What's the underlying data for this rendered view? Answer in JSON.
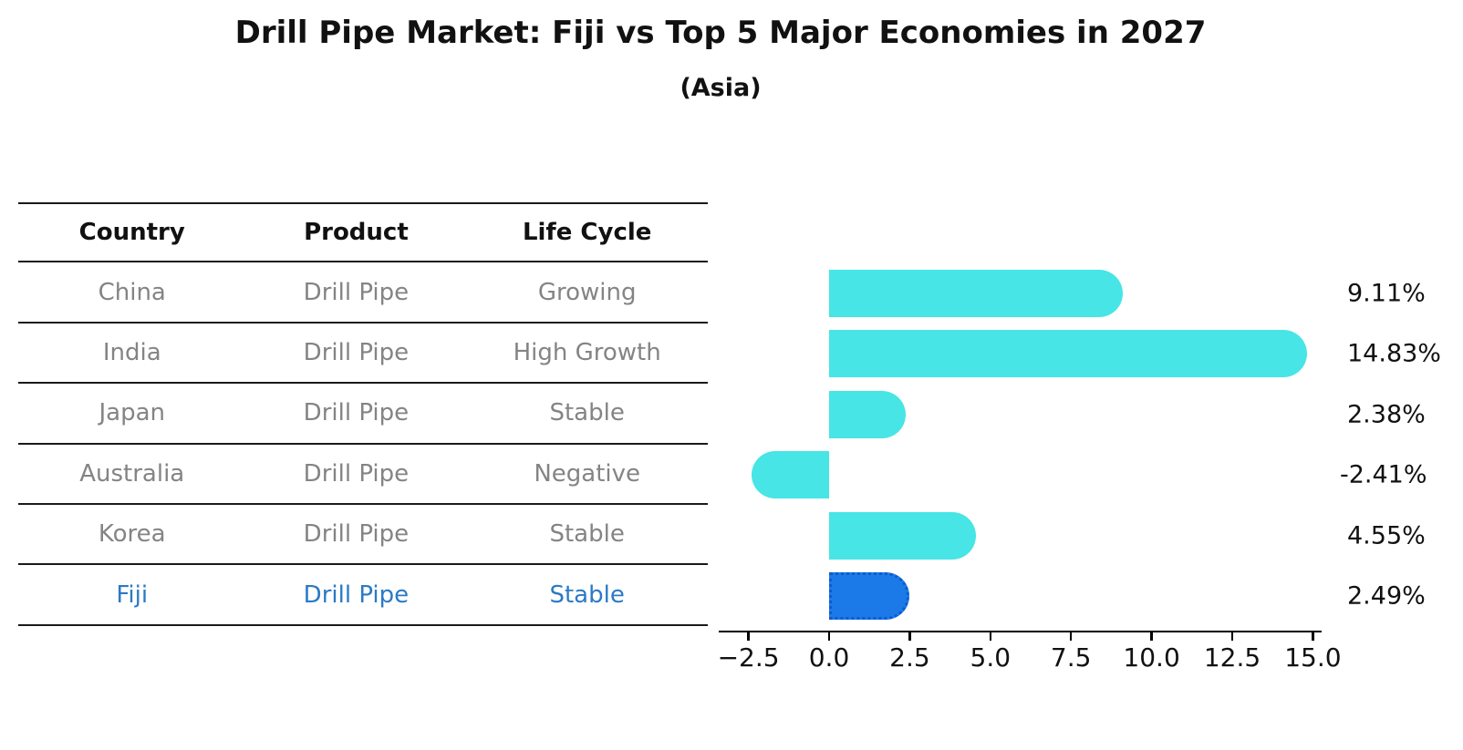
{
  "title": "Drill Pipe Market: Fiji vs Top 5 Major Economies in 2027",
  "subtitle": "(Asia)",
  "colors": {
    "bar_default": "#47e5e5",
    "bar_highlight": "#1c79e8",
    "bar_highlight_border": "#0d5bd0",
    "table_header_text": "#111111",
    "table_row_text": "#848484",
    "table_highlight_text": "#2b7ac6",
    "table_line": "#1a1a1a",
    "axis": "#000000",
    "value_label_text": "#111111"
  },
  "table": {
    "headers": [
      "Country",
      "Product",
      "Life Cycle"
    ],
    "rows": [
      {
        "country": "China",
        "product": "Drill Pipe",
        "life_cycle": "Growing",
        "highlight": false
      },
      {
        "country": "India",
        "product": "Drill Pipe",
        "life_cycle": "High Growth",
        "highlight": false
      },
      {
        "country": "Japan",
        "product": "Drill Pipe",
        "life_cycle": "Stable",
        "highlight": false
      },
      {
        "country": "Australia",
        "product": "Drill Pipe",
        "life_cycle": "Negative",
        "highlight": false
      },
      {
        "country": "Korea",
        "product": "Drill Pipe",
        "life_cycle": "Stable",
        "highlight": false
      },
      {
        "country": "Fiji",
        "product": "Drill Pipe",
        "life_cycle": "Stable",
        "highlight": true
      }
    ]
  },
  "chart_data": {
    "type": "bar",
    "orientation": "horizontal",
    "title": "Drill Pipe Market: Fiji vs Top 5 Major Economies in 2027",
    "subtitle": "(Asia)",
    "categories": [
      "China",
      "India",
      "Japan",
      "Australia",
      "Korea",
      "Fiji"
    ],
    "values": [
      9.11,
      14.83,
      2.38,
      -2.41,
      4.55,
      2.49
    ],
    "value_labels": [
      "9.11%",
      "14.83%",
      "2.38%",
      "-2.41%",
      "4.55%",
      "2.49%"
    ],
    "unit": "%",
    "highlight_index": 5,
    "xlim": [
      -3.4,
      15.3
    ],
    "x_ticks": [
      -2.5,
      0.0,
      2.5,
      5.0,
      7.5,
      10.0,
      12.5,
      15.0
    ],
    "x_tick_labels": [
      "−2.5",
      "0.0",
      "2.5",
      "5.0",
      "7.5",
      "10.0",
      "12.5",
      "15.0"
    ],
    "grid": false,
    "legend": false,
    "ylabel": "",
    "xlabel": ""
  }
}
